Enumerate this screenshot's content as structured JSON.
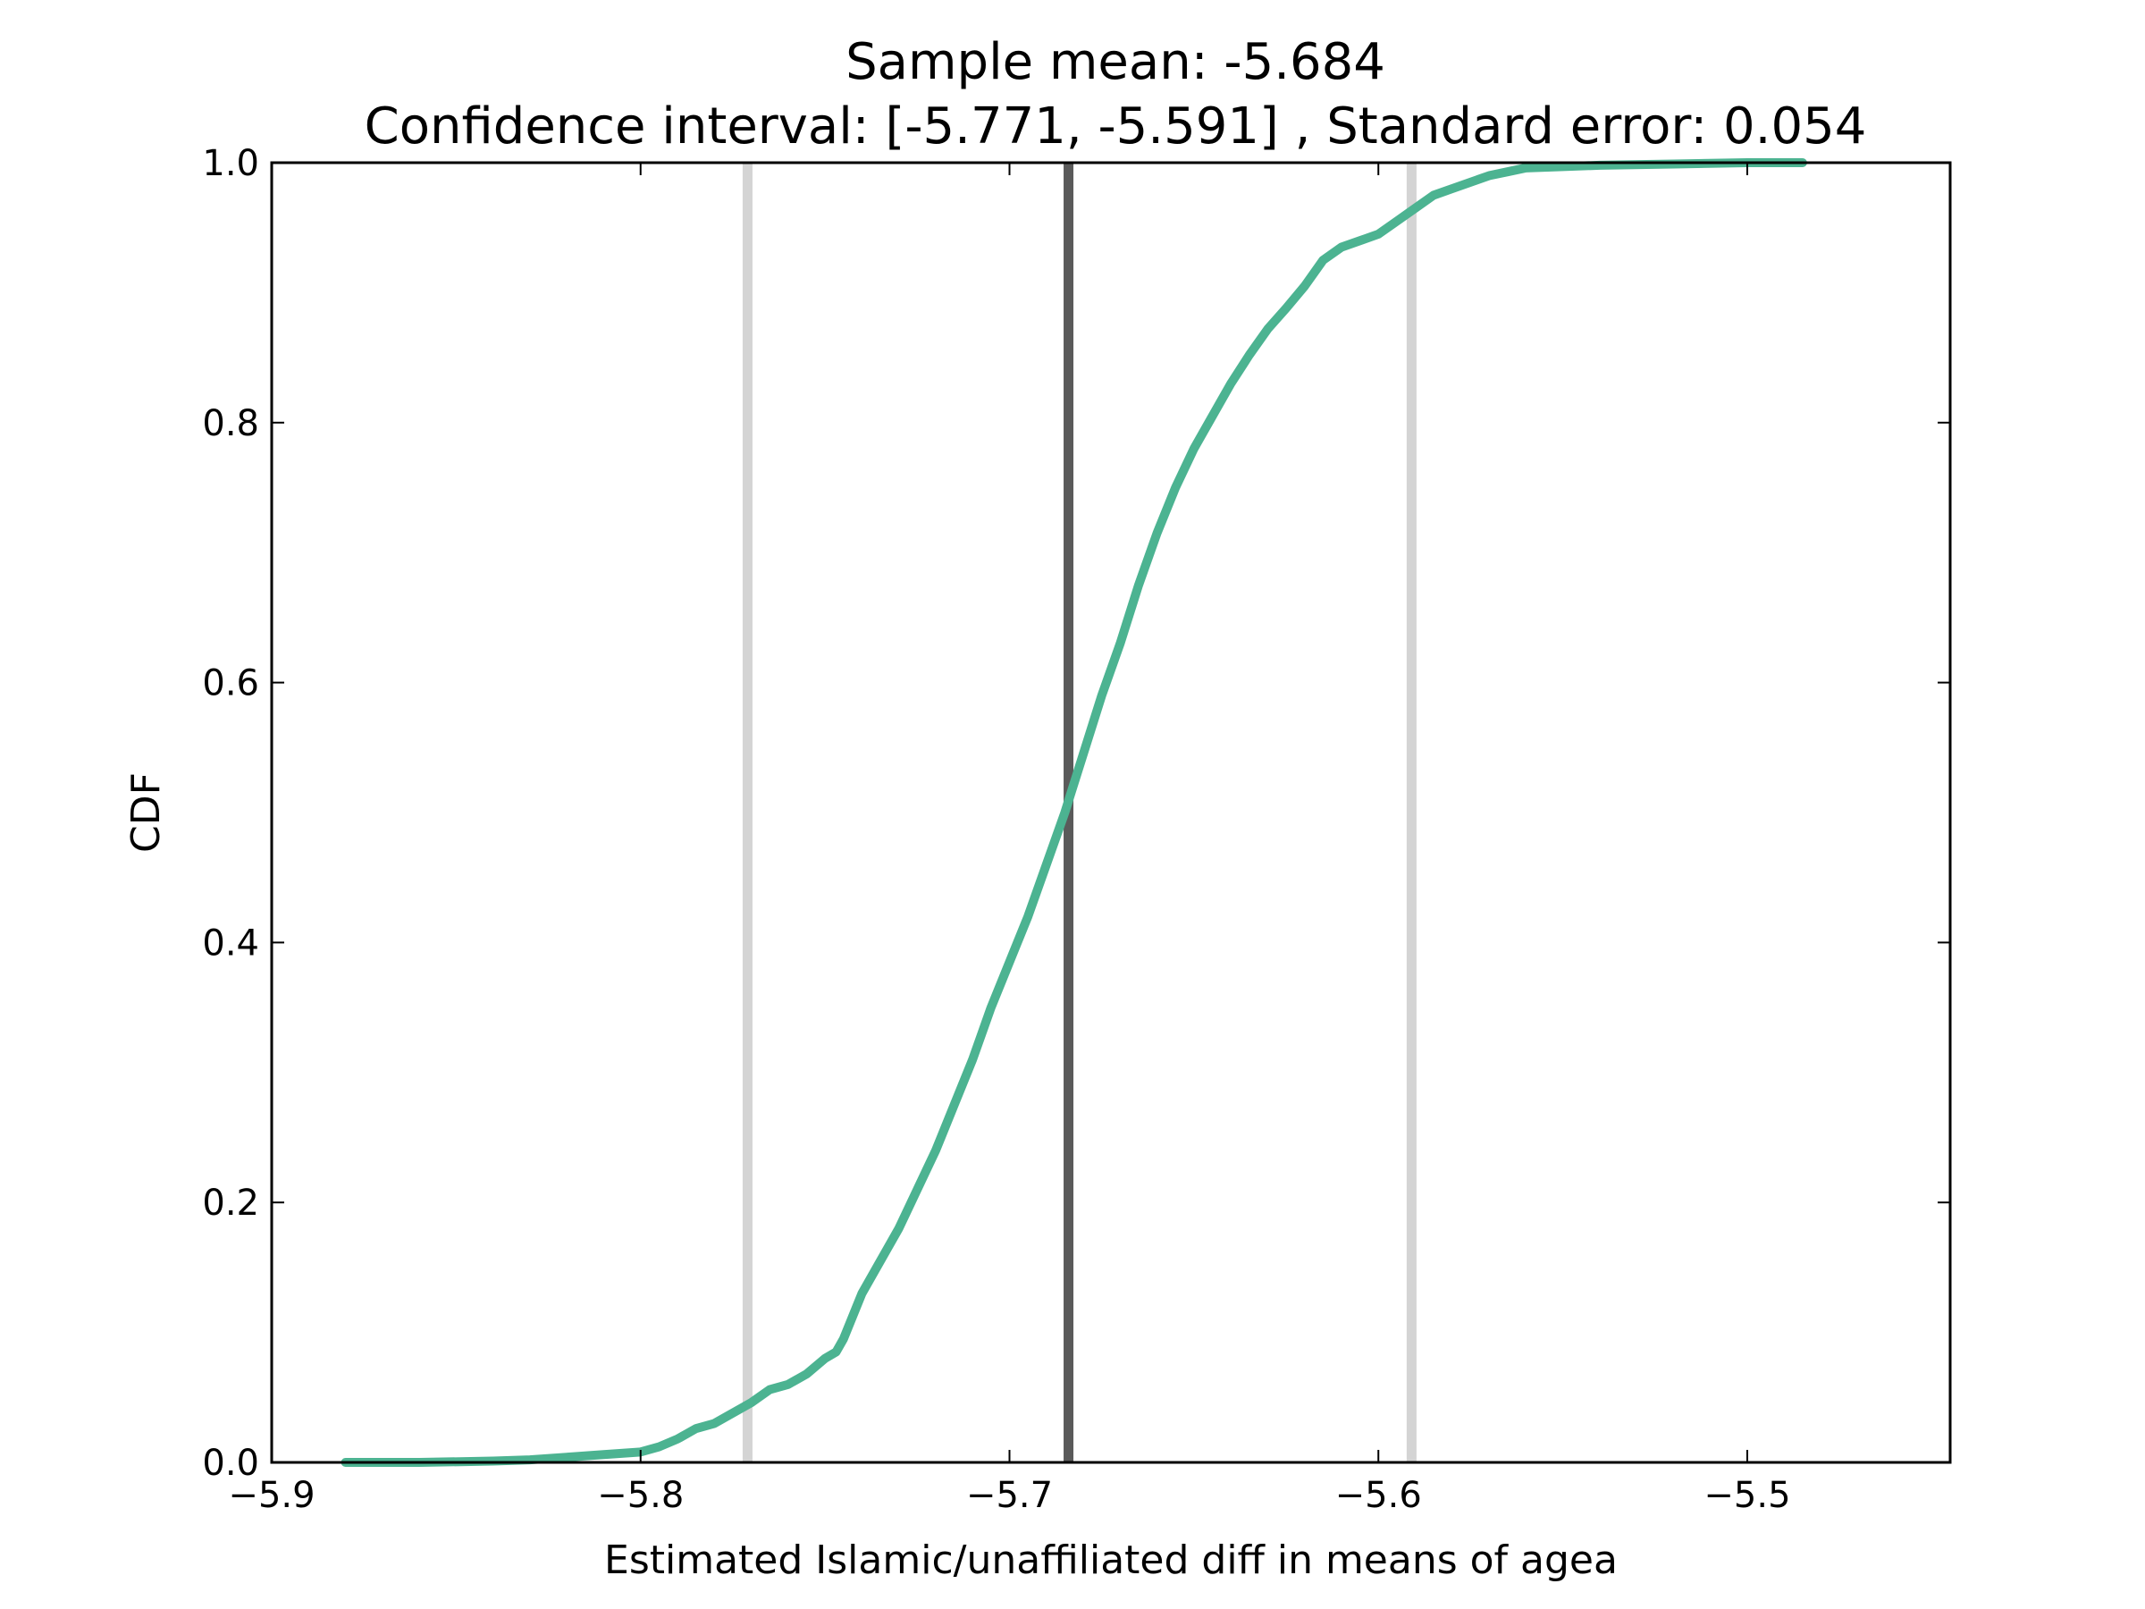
{
  "chart_data": {
    "type": "line",
    "title_line1": "Sample mean: -5.684",
    "title_line2": "Confidence interval: [-5.771, -5.591] , Standard error: 0.054",
    "xlabel": "Estimated Islamic/unaffiliated diff in means of agea",
    "ylabel": "CDF",
    "xlim": [
      -5.9,
      -5.445
    ],
    "ylim": [
      0.0,
      1.0
    ],
    "x_ticks": [
      -5.9,
      -5.8,
      -5.7,
      -5.6,
      -5.5
    ],
    "x_tick_labels": [
      "−5.9",
      "−5.8",
      "−5.7",
      "−5.6",
      "−5.5"
    ],
    "y_ticks": [
      0.0,
      0.2,
      0.4,
      0.6,
      0.8,
      1.0
    ],
    "y_tick_labels": [
      "0.0",
      "0.2",
      "0.4",
      "0.6",
      "0.8",
      "1.0"
    ],
    "grid": false,
    "vertical_lines": [
      {
        "x": -5.771,
        "color": "#d4d4d4"
      },
      {
        "x": -5.684,
        "color": "#5a5a5a"
      },
      {
        "x": -5.591,
        "color": "#d4d4d4"
      }
    ],
    "series": [
      {
        "color": "#4cb391",
        "x": [
          -5.88,
          -5.86,
          -5.84,
          -5.83,
          -5.82,
          -5.81,
          -5.8,
          -5.795,
          -5.79,
          -5.785,
          -5.78,
          -5.775,
          -5.77,
          -5.765,
          -5.76,
          -5.755,
          -5.75,
          -5.747,
          -5.745,
          -5.74,
          -5.735,
          -5.73,
          -5.725,
          -5.72,
          -5.715,
          -5.71,
          -5.705,
          -5.7,
          -5.695,
          -5.69,
          -5.685,
          -5.68,
          -5.675,
          -5.67,
          -5.665,
          -5.66,
          -5.655,
          -5.65,
          -5.645,
          -5.64,
          -5.635,
          -5.63,
          -5.625,
          -5.62,
          -5.615,
          -5.61,
          -5.605,
          -5.6,
          -5.595,
          -5.59,
          -5.585,
          -5.58,
          -5.575,
          -5.57,
          -5.565,
          -5.56,
          -5.55,
          -5.54,
          -5.52,
          -5.5,
          -5.485
        ],
        "y": [
          0.0,
          0.0,
          0.001,
          0.002,
          0.004,
          0.006,
          0.008,
          0.012,
          0.018,
          0.026,
          0.03,
          0.038,
          0.046,
          0.056,
          0.06,
          0.068,
          0.08,
          0.085,
          0.095,
          0.13,
          0.155,
          0.18,
          0.21,
          0.24,
          0.275,
          0.31,
          0.35,
          0.385,
          0.42,
          0.46,
          0.5,
          0.545,
          0.59,
          0.63,
          0.675,
          0.715,
          0.75,
          0.78,
          0.805,
          0.83,
          0.852,
          0.872,
          0.888,
          0.905,
          0.925,
          0.935,
          0.94,
          0.945,
          0.955,
          0.965,
          0.975,
          0.98,
          0.985,
          0.99,
          0.993,
          0.996,
          0.997,
          0.998,
          0.999,
          1.0,
          1.0
        ]
      }
    ]
  }
}
